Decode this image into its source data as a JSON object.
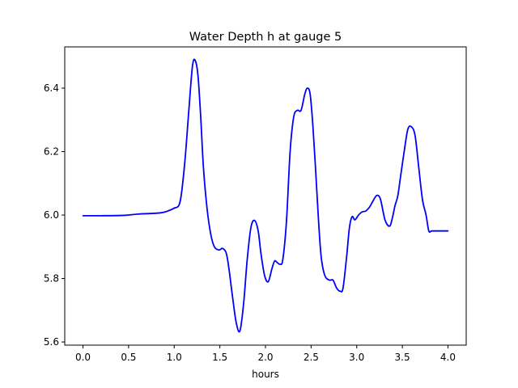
{
  "chart_data": {
    "type": "line",
    "title": "Water Depth h at gauge 5",
    "xlabel": "hours",
    "ylabel": "",
    "xlim": [
      -0.2,
      4.2
    ],
    "ylim": [
      5.59,
      6.53
    ],
    "xticks": [
      0.0,
      0.5,
      1.0,
      1.5,
      2.0,
      2.5,
      3.0,
      3.5,
      4.0
    ],
    "xtick_labels": [
      "0.0",
      "0.5",
      "1.0",
      "1.5",
      "2.0",
      "2.5",
      "3.0",
      "3.5",
      "4.0"
    ],
    "yticks": [
      5.6,
      5.8,
      6.0,
      6.2,
      6.4
    ],
    "ytick_labels": [
      "5.6",
      "5.8",
      "6.0",
      "6.2",
      "6.4"
    ],
    "grid": false,
    "series": [
      {
        "color": "#0000ff",
        "x": [
          0.0,
          0.2,
          0.45,
          0.6,
          0.85,
          0.95,
          1.0,
          1.05,
          1.08,
          1.12,
          1.16,
          1.2,
          1.23,
          1.26,
          1.29,
          1.32,
          1.36,
          1.4,
          1.44,
          1.49,
          1.53,
          1.57,
          1.6,
          1.64,
          1.68,
          1.72,
          1.76,
          1.8,
          1.84,
          1.88,
          1.92,
          1.95,
          1.99,
          2.03,
          2.07,
          2.1,
          2.13,
          2.16,
          2.19,
          2.23,
          2.27,
          2.31,
          2.35,
          2.39,
          2.43,
          2.46,
          2.49,
          2.52,
          2.55,
          2.58,
          2.61,
          2.65,
          2.7,
          2.74,
          2.78,
          2.82,
          2.85,
          2.89,
          2.92,
          2.95,
          2.98,
          3.02,
          3.06,
          3.1,
          3.14,
          3.18,
          3.22,
          3.26,
          3.31,
          3.36,
          3.39,
          3.42,
          3.45,
          3.48,
          3.52,
          3.56,
          3.6,
          3.64,
          3.68,
          3.72,
          3.76,
          3.79,
          3.82,
          3.85,
          3.88,
          3.92,
          3.96,
          4.0
        ],
        "y": [
          5.998,
          5.998,
          5.999,
          6.003,
          6.007,
          6.015,
          6.022,
          6.03,
          6.07,
          6.18,
          6.33,
          6.47,
          6.487,
          6.44,
          6.31,
          6.15,
          6.02,
          5.94,
          5.9,
          5.89,
          5.895,
          5.88,
          5.83,
          5.74,
          5.66,
          5.635,
          5.72,
          5.86,
          5.96,
          5.983,
          5.95,
          5.88,
          5.81,
          5.79,
          5.83,
          5.855,
          5.85,
          5.845,
          5.86,
          5.98,
          6.2,
          6.31,
          6.33,
          6.33,
          6.38,
          6.4,
          6.38,
          6.28,
          6.14,
          5.99,
          5.87,
          5.81,
          5.795,
          5.795,
          5.77,
          5.76,
          5.77,
          5.87,
          5.96,
          5.995,
          5.985,
          6.0,
          6.01,
          6.013,
          6.025,
          6.045,
          6.062,
          6.05,
          5.985,
          5.965,
          5.99,
          6.03,
          6.06,
          6.12,
          6.2,
          6.27,
          6.278,
          6.25,
          6.15,
          6.05,
          6.0,
          5.95,
          5.95,
          5.95,
          5.95,
          5.95,
          5.95,
          5.95
        ]
      }
    ]
  }
}
